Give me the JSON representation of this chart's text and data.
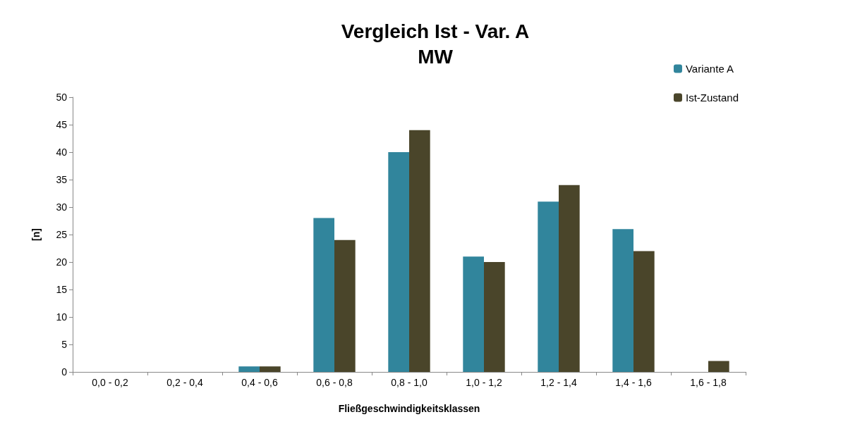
{
  "chart_data": {
    "type": "bar",
    "title": "Vergleich Ist - Var. A",
    "subtitle": "MW",
    "xlabel": "Fließgeschwindigkeitsklassen",
    "ylabel": "[n]",
    "categories": [
      "0,0 - 0,2",
      "0,2 - 0,4",
      "0,4 - 0,6",
      "0,6 - 0,8",
      "0,8 - 1,0",
      "1,0 - 1,2",
      "1,2 - 1,4",
      "1,4 - 1,6",
      "1,6 - 1,8"
    ],
    "series": [
      {
        "name": "Variante A",
        "color": "#31859c",
        "values": [
          0,
          0,
          1,
          28,
          40,
          21,
          31,
          26,
          0
        ]
      },
      {
        "name": "Ist-Zustand",
        "color": "#4a452a",
        "values": [
          0,
          0,
          1,
          24,
          44,
          20,
          34,
          22,
          2
        ]
      }
    ],
    "ylim": [
      0,
      50
    ],
    "yticks": [
      0,
      5,
      10,
      15,
      20,
      25,
      30,
      35,
      40,
      45,
      50
    ],
    "grid": false,
    "legend": "top right"
  }
}
